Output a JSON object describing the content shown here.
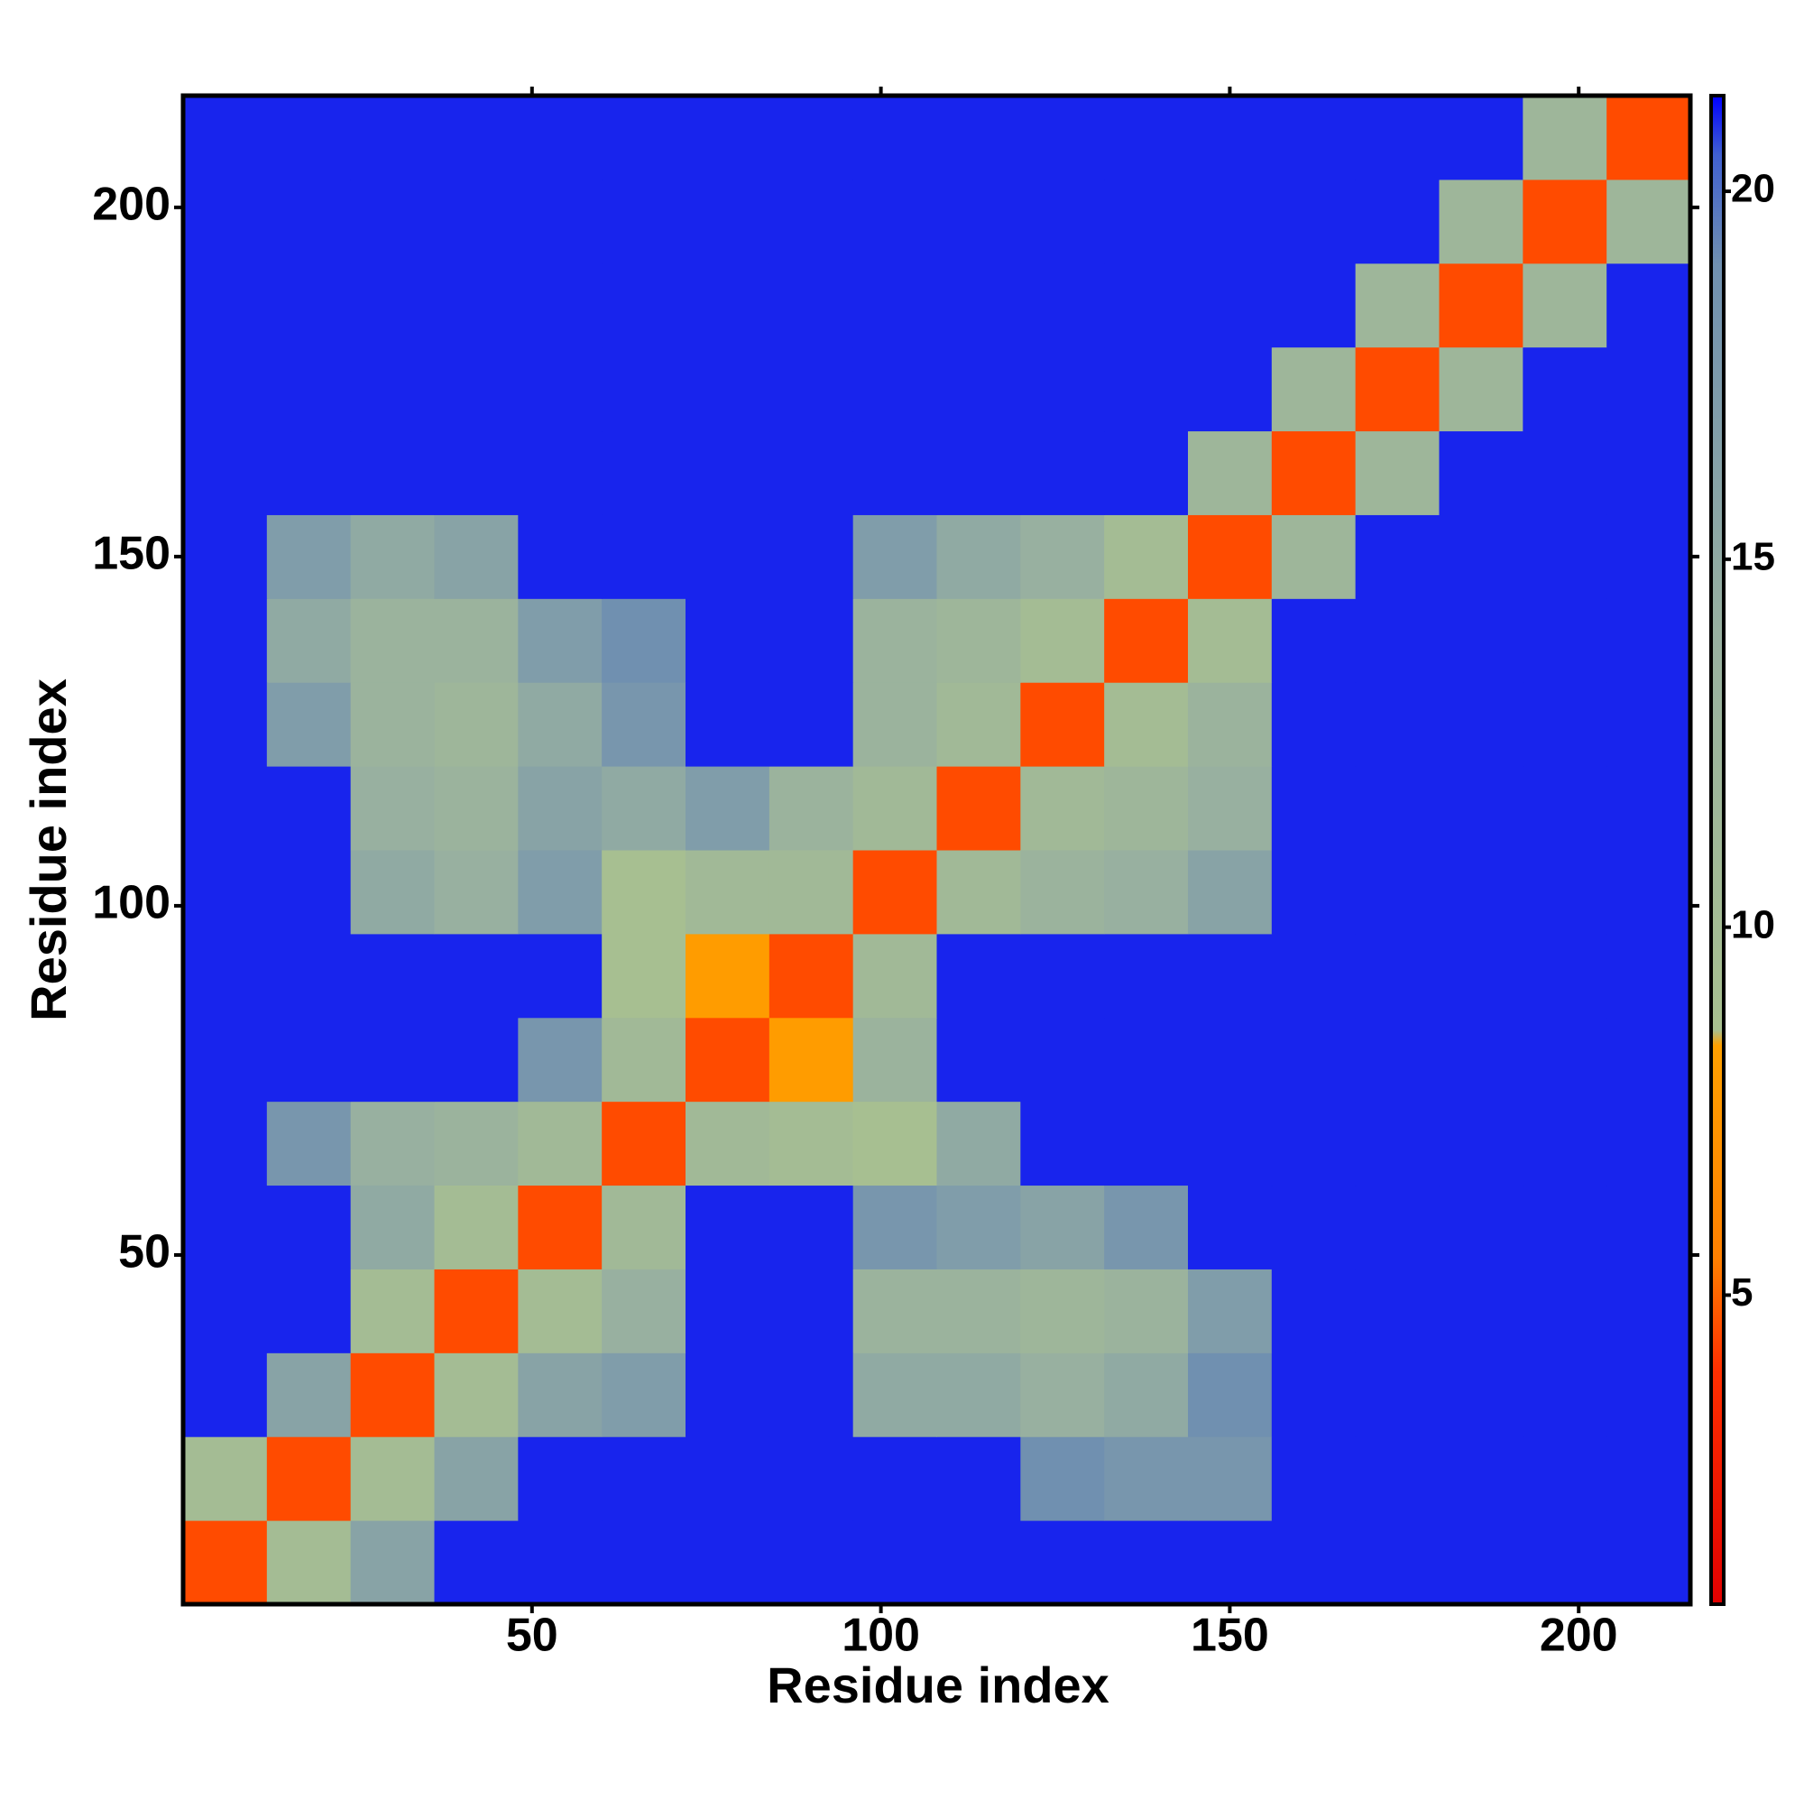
{
  "chart_data": {
    "type": "heatmap",
    "xlabel": "Residue index",
    "ylabel": "Residue index",
    "bins": [
      0,
      12,
      24,
      36,
      48,
      60,
      72,
      84,
      96,
      108,
      120,
      132,
      144,
      156,
      168,
      180,
      192,
      204,
      216
    ],
    "xlim": [
      0,
      216
    ],
    "ylim": [
      0,
      216
    ],
    "xticks": [
      50,
      100,
      150,
      200
    ],
    "yticks": [
      50,
      100,
      150,
      200
    ],
    "z": [
      [
        4.5,
        10,
        16,
        21,
        21,
        21,
        21,
        21,
        21,
        21,
        21,
        21,
        21,
        21,
        21,
        21,
        21,
        21
      ],
      [
        10,
        4.5,
        10,
        16,
        21,
        21,
        21,
        21,
        21,
        21,
        19,
        18,
        18,
        21,
        21,
        21,
        21,
        21
      ],
      [
        21,
        16,
        4.5,
        10,
        16,
        17,
        21,
        21,
        15,
        15,
        14,
        15,
        19,
        21,
        21,
        21,
        21,
        21
      ],
      [
        21,
        21,
        10,
        4.5,
        10,
        14,
        21,
        21,
        13,
        13,
        12,
        13,
        17,
        21,
        21,
        21,
        21,
        21
      ],
      [
        21,
        21,
        15,
        10,
        4.5,
        11,
        21,
        21,
        18,
        17,
        16,
        18,
        21,
        21,
        21,
        21,
        21,
        21
      ],
      [
        21,
        18,
        14,
        13,
        11,
        4.5,
        11,
        10,
        9,
        15,
        21,
        21,
        21,
        21,
        21,
        21,
        21,
        21
      ],
      [
        21,
        21,
        21,
        21,
        18,
        11,
        4.5,
        8,
        13,
        21,
        21,
        21,
        21,
        21,
        21,
        21,
        21,
        21
      ],
      [
        21,
        21,
        21,
        21,
        21,
        9,
        8,
        4.5,
        11,
        21,
        21,
        21,
        21,
        21,
        21,
        21,
        21,
        21
      ],
      [
        21,
        21,
        15,
        14,
        17,
        9,
        11,
        11,
        4.5,
        11,
        13,
        14,
        16,
        21,
        21,
        21,
        21,
        21
      ],
      [
        21,
        21,
        14,
        13,
        16,
        15,
        17,
        13,
        11,
        4.5,
        11,
        12,
        14,
        21,
        21,
        21,
        21,
        21
      ],
      [
        21,
        17,
        13,
        12,
        15,
        18,
        21,
        21,
        13,
        11,
        4.5,
        10,
        13,
        21,
        21,
        21,
        21,
        21
      ],
      [
        21,
        15,
        13,
        13,
        17,
        19,
        21,
        21,
        13,
        12,
        10,
        4.5,
        10,
        21,
        21,
        21,
        21,
        21
      ],
      [
        21,
        17,
        15,
        16,
        21,
        21,
        21,
        21,
        17,
        15,
        14,
        10,
        4.5,
        12,
        21,
        21,
        21,
        21
      ],
      [
        21,
        21,
        21,
        21,
        21,
        21,
        21,
        21,
        21,
        21,
        21,
        21,
        12,
        4.5,
        12,
        21,
        21,
        21
      ],
      [
        21,
        21,
        21,
        21,
        21,
        21,
        21,
        21,
        21,
        21,
        21,
        21,
        21,
        12,
        4.5,
        12,
        21,
        21
      ],
      [
        21,
        21,
        21,
        21,
        21,
        21,
        21,
        21,
        21,
        21,
        21,
        21,
        21,
        21,
        12,
        4.5,
        12,
        21
      ],
      [
        21,
        21,
        21,
        21,
        21,
        21,
        21,
        21,
        21,
        21,
        21,
        21,
        21,
        21,
        21,
        12,
        4.5,
        12
      ],
      [
        21,
        21,
        21,
        21,
        21,
        21,
        21,
        21,
        21,
        21,
        21,
        21,
        21,
        21,
        21,
        21,
        12,
        4.5
      ]
    ],
    "clim": [
      0.8,
      21.3
    ],
    "cticks": [
      5,
      10,
      15,
      20
    ],
    "colorscale": {
      "values": [
        0.8,
        4,
        5.5,
        8.4,
        8.6,
        14,
        19,
        20.5,
        21.3
      ],
      "colors": [
        "#e00000",
        "#ff3000",
        "#ff8000",
        "#ffa000",
        "#a8c090",
        "#98b0a0",
        "#7090b0",
        "#4060d0",
        "#0000ff"
      ]
    }
  }
}
